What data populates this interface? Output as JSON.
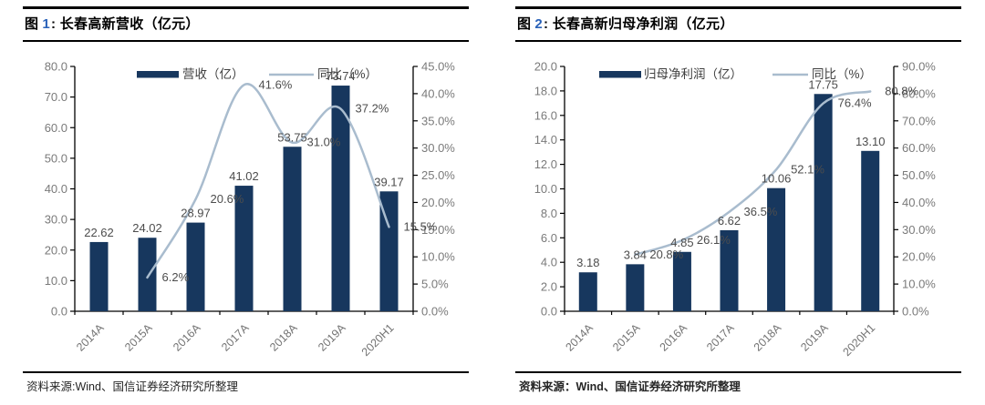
{
  "colors": {
    "bar": "#17375E",
    "line": "#A9BCCE",
    "title_number": "#2A62B9",
    "data_label": "#4D4D4D",
    "axis_label": "#7A7A7A",
    "x_label": "#737373",
    "legend_label": "#404040"
  },
  "panels": [
    {
      "title_prefix": "图",
      "title_number": "1",
      "title_rest": ": 长春高新营收（亿元）",
      "source": "资料来源:Wind、国信证券经济研究所整理"
    },
    {
      "title_prefix": "图",
      "title_number": "2",
      "title_rest": ": 长春高新归母净利润（亿元）",
      "source": "资料来源：Wind、国信证券经济研究所整理"
    }
  ],
  "chart_data": [
    {
      "type": "bar+line",
      "title": "图 1: 长春高新营收（亿元）",
      "categories": [
        "2014A",
        "2015A",
        "2016A",
        "2017A",
        "2018A",
        "2019A",
        "2020H1"
      ],
      "series": [
        {
          "name": "营收（亿）",
          "type": "bar",
          "axis": "left",
          "values": [
            22.62,
            24.02,
            28.97,
            41.02,
            53.75,
            73.74,
            39.17
          ],
          "labels": [
            "22.62",
            "24.02",
            "28.97",
            "41.02",
            "53.75",
            "73.74",
            "39.17"
          ]
        },
        {
          "name": "同比（%）",
          "type": "line",
          "axis": "right",
          "values": [
            null,
            6.2,
            20.6,
            41.6,
            31.0,
            37.2,
            15.5
          ],
          "labels": [
            null,
            "6.2%",
            "20.6%",
            "41.6%",
            "31.0%",
            "37.2%",
            "15.5%"
          ]
        }
      ],
      "left_axis": {
        "min": 0,
        "max": 80,
        "step": 10,
        "ticks": [
          "80.0",
          "70.0",
          "60.0",
          "50.0",
          "40.0",
          "30.0",
          "20.0",
          "10.0",
          "0.0"
        ]
      },
      "right_axis": {
        "min": 0,
        "max": 45,
        "step": 5,
        "ticks": [
          "45.0%",
          "40.0%",
          "35.0%",
          "30.0%",
          "25.0%",
          "20.0%",
          "15.0%",
          "10.0%",
          "5.0%",
          "0.0%"
        ]
      },
      "grid": false,
      "legend_position": "top"
    },
    {
      "type": "bar+line",
      "title": "图 2: 长春高新归母净利润（亿元）",
      "categories": [
        "2014A",
        "2015A",
        "2016A",
        "2017A",
        "2018A",
        "2019A",
        "2020H1"
      ],
      "series": [
        {
          "name": "归母净利润（亿）",
          "type": "bar",
          "axis": "left",
          "values": [
            3.18,
            3.84,
            4.85,
            6.62,
            10.06,
            17.75,
            13.1
          ],
          "labels": [
            "3.18",
            "3.84",
            "4.85",
            "6.62",
            "10.06",
            "17.75",
            "13.10"
          ]
        },
        {
          "name": "同比（%）",
          "type": "line",
          "axis": "right",
          "values": [
            null,
            20.8,
            26.1,
            36.5,
            52.1,
            76.4,
            80.8
          ],
          "labels": [
            null,
            "20.8%",
            "26.1%",
            "36.5%",
            "52.1%",
            "76.4%",
            "80.8%"
          ]
        }
      ],
      "left_axis": {
        "min": 0,
        "max": 20,
        "step": 2,
        "ticks": [
          "20.0",
          "18.0",
          "16.0",
          "14.0",
          "12.0",
          "10.0",
          "8.0",
          "6.0",
          "4.0",
          "2.0",
          "0.0"
        ]
      },
      "right_axis": {
        "min": 0,
        "max": 90,
        "step": 10,
        "ticks": [
          "90.0%",
          "80.0%",
          "70.0%",
          "60.0%",
          "50.0%",
          "40.0%",
          "30.0%",
          "20.0%",
          "10.0%",
          "0.0%"
        ]
      },
      "grid": false,
      "legend_position": "top"
    }
  ]
}
